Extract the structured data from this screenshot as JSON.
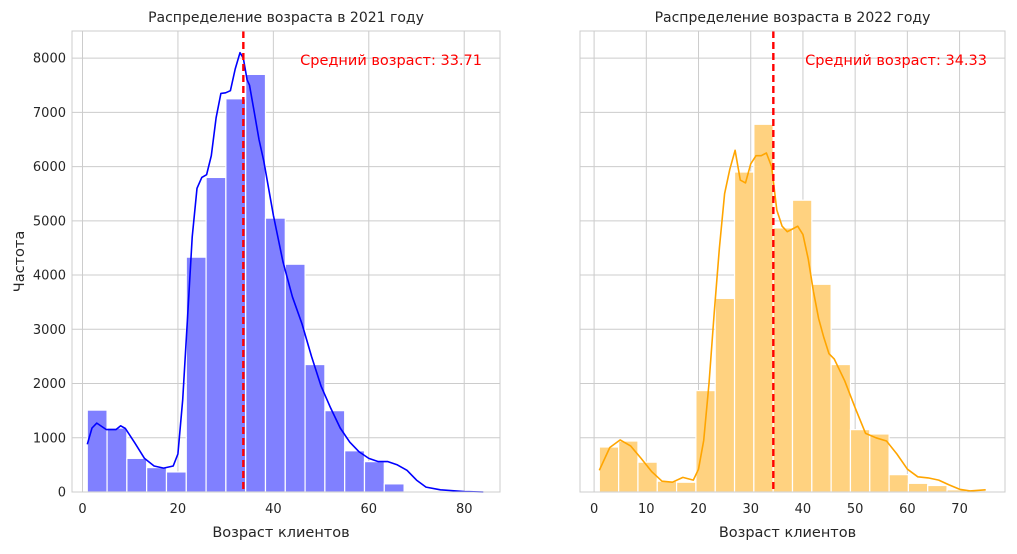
{
  "chart_data": [
    {
      "type": "bar",
      "title": "Распределение возраста в 2021 году",
      "xlabel": "Возраст клиентов",
      "ylabel": "Частота",
      "xlim": [
        -2.2,
        87.5
      ],
      "ylim": [
        0,
        8500
      ],
      "xticks": [
        0,
        20,
        40,
        60,
        80
      ],
      "yticks": [
        0,
        1000,
        2000,
        3000,
        4000,
        5000,
        6000,
        7000,
        8000
      ],
      "bin_start": 1,
      "bin_width": 4.15,
      "values": [
        1510,
        1180,
        620,
        450,
        370,
        4330,
        5800,
        7250,
        7700,
        5050,
        4200,
        2350,
        1500,
        760,
        560,
        150,
        20,
        10,
        5,
        3
      ],
      "kde_x": [
        1,
        2,
        3,
        5,
        7,
        8,
        9,
        11,
        13,
        15,
        17,
        19,
        20,
        21,
        22,
        23,
        24,
        25,
        26,
        27,
        28,
        29,
        30,
        31,
        32,
        33,
        33.7,
        34.5,
        35,
        36,
        37,
        38,
        40,
        42,
        44,
        46,
        48,
        50,
        52,
        54,
        56,
        58,
        60,
        62,
        64,
        66,
        68,
        70,
        72,
        75,
        80,
        84
      ],
      "kde_y": [
        880,
        1180,
        1270,
        1150,
        1150,
        1220,
        1170,
        900,
        620,
        480,
        440,
        480,
        700,
        1700,
        3200,
        4700,
        5600,
        5800,
        5850,
        6200,
        6900,
        7350,
        7360,
        7400,
        7800,
        8100,
        8000,
        7600,
        7500,
        7000,
        6500,
        6100,
        5100,
        4250,
        3600,
        3100,
        2500,
        1950,
        1550,
        1180,
        920,
        740,
        620,
        560,
        560,
        500,
        400,
        220,
        90,
        40,
        10,
        0
      ],
      "mean": 33.71,
      "mean_label": "Средний возраст: 33.71",
      "color": "#0000ff",
      "bar_fill": "#8080ff",
      "mean_color": "#ff0000"
    },
    {
      "type": "bar",
      "title": "Распределение возраста в 2022 году",
      "xlabel": "Возраст клиентов",
      "ylabel": "",
      "xlim": [
        -2.7,
        78.7
      ],
      "ylim": [
        0,
        8500
      ],
      "xticks": [
        0,
        10,
        20,
        30,
        40,
        50,
        60,
        70
      ],
      "yticks": [
        0,
        1000,
        2000,
        3000,
        4000,
        5000,
        6000,
        7000,
        8000
      ],
      "bin_start": 1,
      "bin_width": 3.7,
      "values": [
        830,
        940,
        550,
        200,
        180,
        1870,
        3570,
        5900,
        6780,
        4870,
        5380,
        3830,
        2350,
        1150,
        1070,
        320,
        160,
        120,
        40,
        25
      ],
      "kde_x": [
        1,
        3,
        5,
        7,
        9,
        11,
        13,
        15,
        17,
        19,
        20,
        21,
        22,
        23,
        24,
        25,
        26,
        27,
        28,
        29,
        30,
        31,
        32,
        33,
        34,
        35,
        36,
        37,
        38,
        39,
        40,
        41,
        42,
        43,
        44,
        45,
        46,
        48,
        50,
        52,
        54,
        56,
        58,
        60,
        62,
        64,
        66,
        68,
        70,
        72,
        75
      ],
      "kde_y": [
        400,
        820,
        960,
        850,
        620,
        380,
        200,
        180,
        270,
        220,
        420,
        950,
        2000,
        3300,
        4500,
        5500,
        5950,
        6300,
        5750,
        5700,
        6050,
        6200,
        6200,
        6250,
        6000,
        5200,
        4900,
        4800,
        4850,
        4900,
        4750,
        4300,
        3700,
        3200,
        2850,
        2550,
        2450,
        2050,
        1550,
        1080,
        1000,
        940,
        700,
        420,
        280,
        260,
        220,
        130,
        50,
        20,
        40
      ],
      "mean": 34.33,
      "mean_label": "Средний возраст: 34.33",
      "color": "#ffa500",
      "bar_fill": "#ffd280",
      "mean_color": "#ff0000"
    }
  ]
}
